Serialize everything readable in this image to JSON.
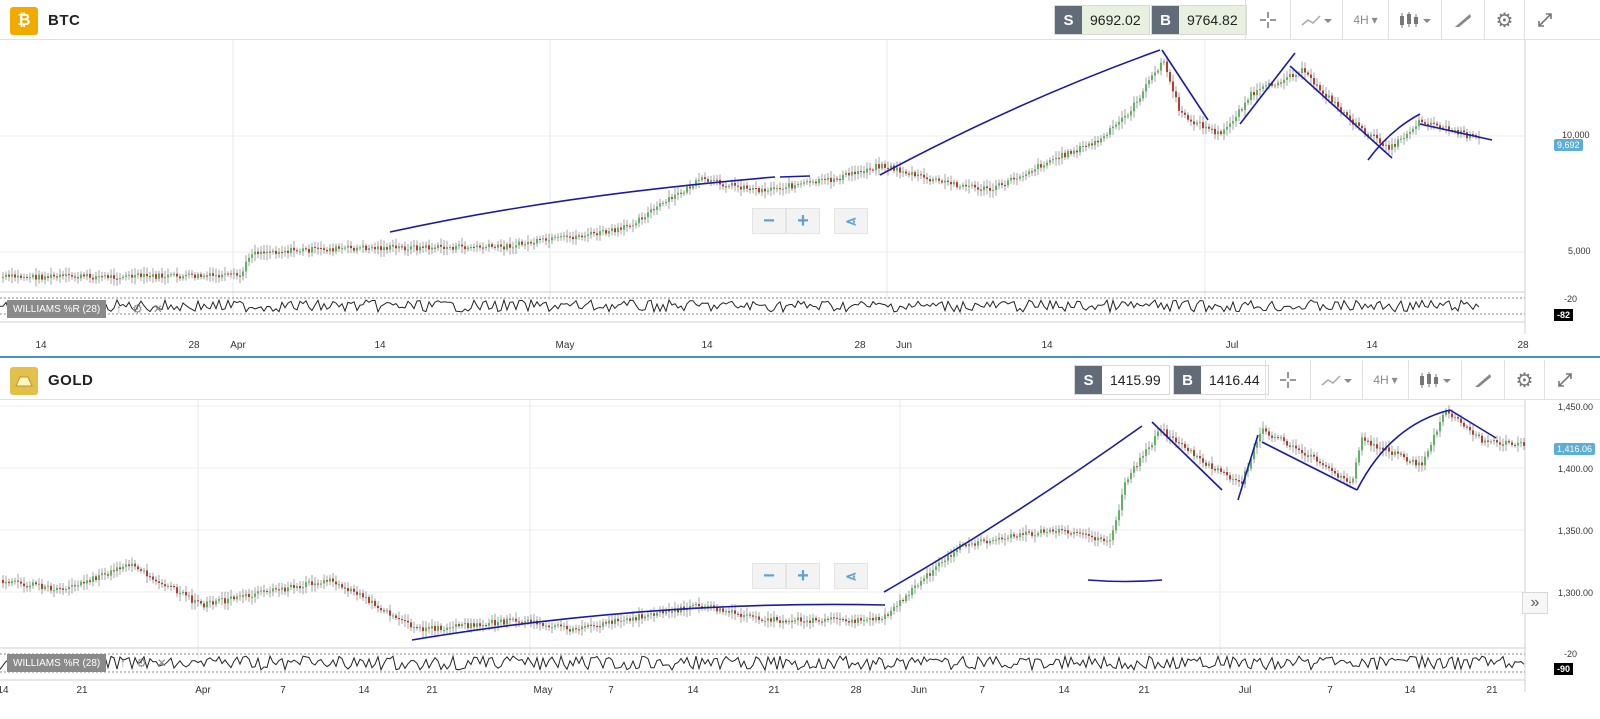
{
  "btc": {
    "name": "BTC",
    "logo_glyph": "₿",
    "logo_color": "#f2a900",
    "sell_label": "S",
    "sell_price": "9692.02",
    "buy_label": "B",
    "buy_price": "9764.82",
    "timeframe": "4H",
    "indicator": "WILLIAMS %R (28)",
    "y_ticks": [
      "10,000",
      "5,000"
    ],
    "current_price": "9,692",
    "wr_levels": [
      "-20",
      "-82"
    ],
    "x_ticks": [
      "14",
      "28",
      "Apr",
      "14",
      "May",
      "14",
      "28",
      "Jun",
      "14",
      "Jul",
      "14",
      "28"
    ]
  },
  "gold": {
    "name": "GOLD",
    "logo_color": "#e3c04a",
    "sell_label": "S",
    "sell_price": "1415.99",
    "buy_label": "B",
    "buy_price": "1416.44",
    "timeframe": "4H",
    "indicator": "WILLIAMS %R (28)",
    "y_ticks": [
      "1,450.00",
      "1,400.00",
      "1,350.00",
      "1,300.00"
    ],
    "current_price": "1,416.06",
    "wr_levels": [
      "-20",
      "-90"
    ],
    "x_ticks": [
      "14",
      "21",
      "Apr",
      "7",
      "14",
      "21",
      "May",
      "7",
      "14",
      "21",
      "28",
      "Jun",
      "7",
      "14",
      "21",
      "Jul",
      "7",
      "14",
      "21"
    ]
  },
  "icons": {
    "crosshair": "crosshair-icon",
    "line_chart": "line-chart-icon",
    "candle": "candlestick-icon",
    "draw": "draw-icon",
    "settings": "gear-icon",
    "expand": "expand-icon",
    "zoom_out": "minus-icon",
    "zoom_in": "plus-icon",
    "share": "share-icon"
  },
  "colors": {
    "accent": "#4a90c2",
    "trendline": "#1a1aa6",
    "up": "#5cb85c",
    "down": "#c0392b"
  }
}
